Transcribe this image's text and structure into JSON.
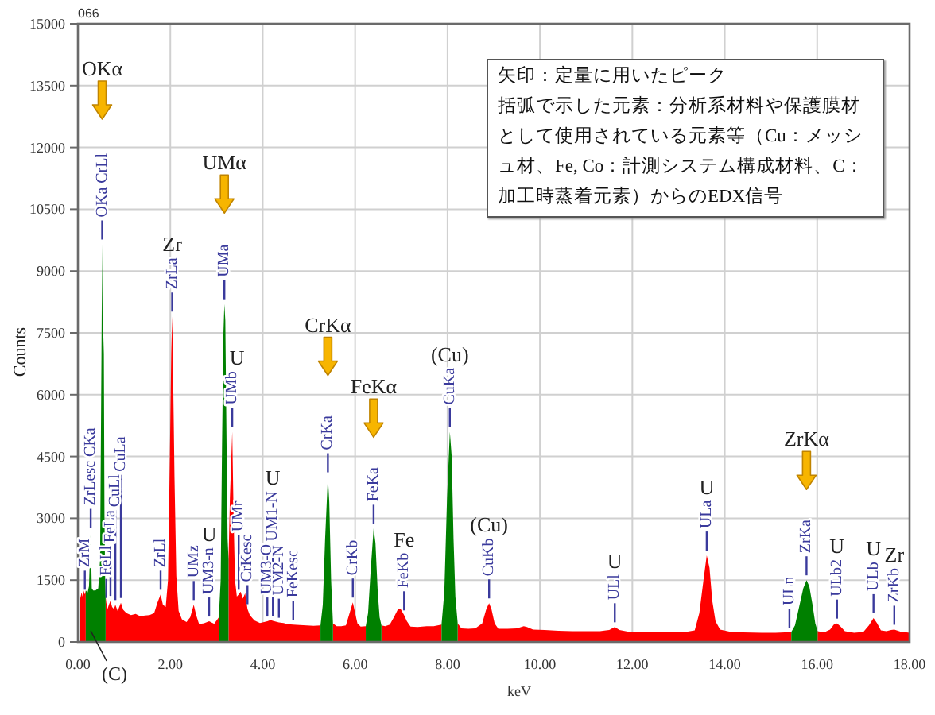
{
  "chart_data": {
    "type": "area",
    "title": "066",
    "xlabel": "keV",
    "ylabel": "Counts",
    "xlim": [
      0,
      18
    ],
    "ylim": [
      0,
      15000
    ],
    "xticks": [
      {
        "value": 0,
        "label": "0.00"
      },
      {
        "value": 2,
        "label": "2.00"
      },
      {
        "value": 4,
        "label": "4.00"
      },
      {
        "value": 6,
        "label": "6.00"
      },
      {
        "value": 8,
        "label": "8.00"
      },
      {
        "value": 10,
        "label": "10.00"
      },
      {
        "value": 12,
        "label": "12.00"
      },
      {
        "value": 14,
        "label": "14.00"
      },
      {
        "value": 16,
        "label": "16.00"
      },
      {
        "value": 18,
        "label": "18.00"
      }
    ],
    "yticks": [
      0,
      1500,
      3000,
      4500,
      6000,
      7500,
      9000,
      10500,
      12000,
      13500,
      15000
    ],
    "grid": true,
    "series": [
      {
        "color": "#ff0000",
        "x": [
          0.05,
          0.08,
          0.1,
          0.12,
          0.15,
          0.17,
          0.38,
          0.6,
          0.615,
          0.64,
          0.67,
          0.705,
          0.74,
          0.78,
          0.811,
          0.86,
          0.93,
          0.98,
          1.05,
          1.15,
          1.25,
          1.35,
          1.45,
          1.55,
          1.65,
          1.72,
          1.79,
          1.84,
          1.9,
          1.95,
          1.99,
          2.02,
          2.04,
          2.06,
          2.09,
          2.13,
          2.18,
          2.25,
          2.35,
          2.43,
          2.507,
          2.56,
          2.62,
          2.72,
          2.84,
          2.95,
          3.05,
          3.15,
          3.26,
          3.29,
          3.34,
          3.37,
          3.4,
          3.44,
          3.48,
          3.52,
          3.57,
          3.62,
          3.67,
          3.72,
          3.82,
          3.94,
          4.1,
          4.17,
          4.22,
          4.35,
          4.45,
          4.55,
          4.66,
          4.8,
          4.95,
          5.1,
          5.25,
          5.38,
          5.52,
          5.6,
          5.7,
          5.8,
          5.88,
          5.95,
          6.0,
          6.05,
          6.12,
          6.23,
          6.4,
          6.57,
          6.65,
          6.75,
          6.85,
          6.93,
          6.98,
          7.06,
          7.12,
          7.2,
          7.35,
          7.55,
          7.7,
          7.87,
          8.05,
          8.22,
          8.3,
          8.45,
          8.6,
          8.75,
          8.84,
          8.9,
          8.95,
          9.02,
          9.1,
          9.3,
          9.5,
          9.65,
          9.72,
          9.85,
          10.1,
          10.4,
          10.7,
          11.0,
          11.3,
          11.5,
          11.62,
          11.72,
          11.9,
          12.2,
          12.6,
          12.9,
          13.2,
          13.35,
          13.45,
          13.54,
          13.61,
          13.67,
          13.73,
          13.8,
          13.9,
          14.1,
          14.4,
          14.8,
          15.1,
          15.3,
          15.4,
          15.44,
          15.7,
          16.01,
          16.15,
          16.28,
          16.36,
          16.43,
          16.5,
          16.6,
          16.8,
          17.0,
          17.12,
          17.22,
          17.3,
          17.38,
          17.5,
          17.6,
          17.67,
          17.8,
          18.0
        ],
        "values": [
          1050,
          1200,
          1100,
          1250,
          1150,
          1250,
          null,
          1100,
          950,
          800,
          900,
          1000,
          850,
          800,
          900,
          750,
          950,
          780,
          700,
          650,
          680,
          620,
          640,
          650,
          700,
          950,
          1150,
          900,
          850,
          1500,
          4500,
          7000,
          7900,
          6500,
          4000,
          1600,
          750,
          550,
          480,
          600,
          900,
          650,
          440,
          450,
          500,
          440,
          600,
          null,
          2000,
          3500,
          5100,
          3000,
          1500,
          1100,
          1150,
          1220,
          1050,
          1180,
          800,
          650,
          520,
          460,
          500,
          530,
          510,
          470,
          460,
          430,
          420,
          410,
          400,
          390,
          400,
          null,
          450,
          380,
          380,
          400,
          700,
          960,
          700,
          450,
          370,
          380,
          null,
          400,
          380,
          420,
          620,
          800,
          810,
          650,
          500,
          370,
          360,
          380,
          380,
          420,
          null,
          450,
          330,
          320,
          330,
          450,
          800,
          940,
          800,
          450,
          320,
          320,
          330,
          380,
          360,
          300,
          290,
          270,
          260,
          260,
          260,
          290,
          360,
          290,
          250,
          240,
          240,
          240,
          250,
          280,
          700,
          1500,
          2100,
          1800,
          1000,
          500,
          300,
          250,
          230,
          220,
          220,
          230,
          230,
          240,
          null,
          260,
          230,
          300,
          420,
          450,
          380,
          260,
          220,
          240,
          400,
          580,
          450,
          280,
          260,
          290,
          300,
          250,
          220
        ]
      },
      {
        "color": "#008000",
        "x": [
          0.17,
          0.21,
          0.24,
          0.277,
          0.3,
          0.33,
          0.38,
          0.44,
          0.48,
          0.51,
          0.525,
          0.54,
          0.56,
          0.575,
          0.59,
          0.6,
          1.8,
          3.05,
          3.09,
          3.12,
          3.15,
          3.17,
          3.19,
          3.22,
          3.24,
          3.26,
          4.3,
          5.25,
          5.3,
          5.35,
          5.41,
          5.44,
          5.48,
          5.52,
          5.9,
          6.23,
          6.28,
          6.34,
          6.4,
          6.44,
          6.49,
          6.53,
          6.57,
          7.2,
          7.87,
          7.93,
          7.99,
          8.05,
          8.09,
          8.13,
          8.17,
          8.22,
          12.0,
          15.44,
          15.52,
          15.6,
          15.7,
          15.77,
          15.83,
          15.9,
          15.96,
          16.01
        ],
        "values": [
          1250,
          1200,
          1350,
          2650,
          1300,
          1250,
          1250,
          1300,
          2000,
          7000,
          9650,
          6500,
          7400,
          3000,
          1500,
          1100,
          null,
          600,
          1500,
          4800,
          7500,
          8200,
          7800,
          4500,
          2500,
          2000,
          null,
          400,
          900,
          2500,
          4000,
          3400,
          1500,
          450,
          null,
          380,
          700,
          1800,
          2750,
          2400,
          1200,
          600,
          400,
          null,
          420,
          1200,
          3500,
          5100,
          4500,
          2500,
          1100,
          450,
          null,
          240,
          400,
          800,
          1300,
          1500,
          1350,
          900,
          450,
          260
        ]
      },
      {
        "type": "scatter",
        "color": "#f7b500",
        "marker": "triangle",
        "x": [
          0.525,
          3.17,
          5.41,
          6.4,
          15.77
        ],
        "values": [
          13150,
          10870,
          6930,
          5430,
          4160
        ]
      }
    ],
    "annotations": [
      "矢印：定量に用いたピーク",
      "括弧で示した元素：分析系材料や保護膜材として使用されている元素等（Cu：メッシュ材、Fe, Co：計測システム構成材料、C：加工時蒸着元素）からのEDX信号",
      {
        "text": "OKα",
        "x": 0.525,
        "y": 13150
      },
      {
        "text": "UMα",
        "x": 3.17,
        "y": 10870
      },
      {
        "text": "CrKα",
        "x": 5.41,
        "y": 6930
      },
      {
        "text": "FeKα",
        "x": 6.4,
        "y": 5430
      },
      {
        "text": "ZrKα",
        "x": 15.77,
        "y": 4160
      },
      {
        "text": "ZrM",
        "x": 0.15,
        "y": 1150
      },
      {
        "text": "ZrLesc CKa",
        "x": 0.277,
        "y": 2650
      },
      "(C)",
      {
        "text": "OKa CrLl",
        "x": 0.525,
        "y": 9650
      },
      {
        "text": "FeLl",
        "x": 0.615,
        "y": 950
      },
      {
        "text": "FeLa",
        "x": 0.705,
        "y": 1000
      },
      {
        "text": "CuLl",
        "x": 0.811,
        "y": 900
      },
      {
        "text": "CuLa",
        "x": 0.93,
        "y": 950
      },
      {
        "text": "ZrLl",
        "x": 1.79,
        "y": 1150
      },
      {
        "text": "ZrLa",
        "x": 2.04,
        "y": 7900
      },
      "Zr",
      {
        "text": "UMz",
        "x": 2.507,
        "y": 900
      },
      {
        "text": "UM3-n",
        "x": 2.84,
        "y": 500
      },
      "U",
      {
        "text": "UMa",
        "x": 3.17,
        "y": 8200
      },
      {
        "text": "UMb",
        "x": 3.34,
        "y": 5100
      },
      "U",
      {
        "text": "CrKesc",
        "x": 3.67,
        "y": 800
      },
      {
        "text": "UMr",
        "x": 3.48,
        "y": 1150
      },
      {
        "text": "UM3-O",
        "x": 4.1,
        "y": 500
      },
      {
        "text": "UM2-N",
        "x": 4.35,
        "y": 470
      },
      {
        "text": "UM1-N",
        "x": 4.22,
        "y": 510
      },
      "U",
      {
        "text": "FeKesc",
        "x": 4.66,
        "y": 420
      },
      {
        "text": "CrKa",
        "x": 5.41,
        "y": 4000
      },
      {
        "text": "CrKb",
        "x": 5.95,
        "y": 960
      },
      {
        "text": "FeKa",
        "x": 6.4,
        "y": 2750
      },
      {
        "text": "FeKb",
        "x": 7.06,
        "y": 650
      },
      "Fe",
      {
        "text": "CuKa",
        "x": 8.05,
        "y": 5100
      },
      "(Cu)",
      {
        "text": "CuKb",
        "x": 8.9,
        "y": 940
      },
      "(Cu)",
      {
        "text": "ULl",
        "x": 11.62,
        "y": 360
      },
      "U",
      {
        "text": "ULa",
        "x": 13.61,
        "y": 2100
      },
      "U",
      {
        "text": "ULn",
        "x": 15.4,
        "y": 230
      },
      {
        "text": "ZrKa",
        "x": 15.77,
        "y": 1500
      },
      {
        "text": "ULb2",
        "x": 16.43,
        "y": 450
      },
      "U",
      {
        "text": "ULb",
        "x": 17.22,
        "y": 580
      },
      "U",
      {
        "text": "ZrKb",
        "x": 17.67,
        "y": 300
      },
      "Zr"
    ]
  }
}
